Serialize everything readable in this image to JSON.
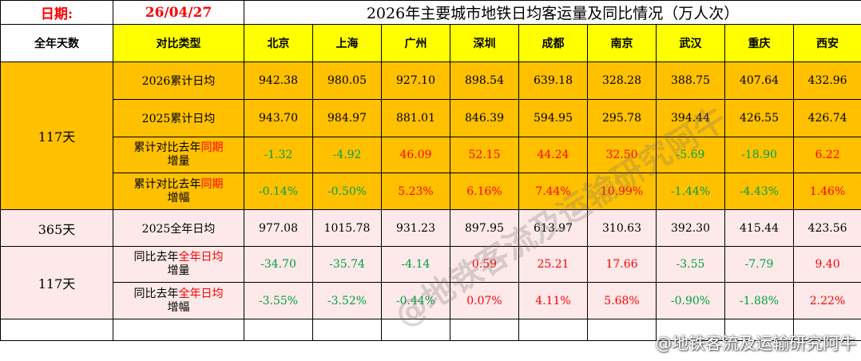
{
  "header": {
    "date_label": "日期:",
    "date_value": "26/04/27",
    "title": "2026年主要城市地铁日均客运量及同比情况（万人次）"
  },
  "columns": {
    "days_header": "全年天数",
    "type_header": "对比类型",
    "cities": [
      "北京",
      "上海",
      "广州",
      "深圳",
      "成都",
      "南京",
      "武汉",
      "重庆",
      "西安"
    ]
  },
  "groups": {
    "g1_days": "117天",
    "g2_days": "365天",
    "g3_days": "117天"
  },
  "rows": [
    {
      "label": "2026累计日均",
      "values": [
        "942.38",
        "980.05",
        "927.10",
        "898.54",
        "639.18",
        "328.28",
        "388.75",
        "407.64",
        "432.96"
      ]
    },
    {
      "label": "2025累计日均",
      "values": [
        "943.70",
        "984.97",
        "881.01",
        "846.39",
        "594.95",
        "295.78",
        "394.44",
        "426.55",
        "426.74"
      ]
    },
    {
      "label_a": "累计对比去年",
      "label_hl": "同期",
      "label_b": "增量",
      "values": [
        "-1.32",
        "-4.92",
        "46.09",
        "52.15",
        "44.24",
        "32.50",
        "-5.69",
        "-18.90",
        "6.22"
      ]
    },
    {
      "label_a": "累计对比去年",
      "label_hl": "同期",
      "label_b": "增幅",
      "values": [
        "-0.14%",
        "-0.50%",
        "5.23%",
        "6.16%",
        "7.44%",
        "10.99%",
        "-1.44%",
        "-4.43%",
        "1.46%"
      ]
    },
    {
      "label": "2025全年日均",
      "values": [
        "977.08",
        "1015.78",
        "931.23",
        "897.95",
        "613.97",
        "310.63",
        "392.30",
        "415.44",
        "423.56"
      ]
    },
    {
      "label_a": "同比去年",
      "label_hl": "全年日均",
      "label_b": "增量",
      "values": [
        "-34.70",
        "-35.74",
        "-4.14",
        "0.59",
        "25.21",
        "17.66",
        "-3.55",
        "-7.79",
        "9.40"
      ]
    },
    {
      "label_a": "同比去年",
      "label_hl": "全年日均",
      "label_b": "增幅",
      "values": [
        "-3.55%",
        "-3.52%",
        "-0.44%",
        "0.07%",
        "4.11%",
        "5.68%",
        "-0.90%",
        "-1.88%",
        "2.22%"
      ]
    }
  ],
  "watermark": {
    "center": "@地铁客流及运输研究阿牛",
    "corner": "@地铁客流及运输研究阿牛"
  }
}
